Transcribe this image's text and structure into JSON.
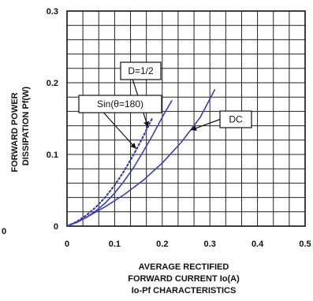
{
  "chart_data": {
    "type": "line",
    "xlabel_lines": [
      "AVERAGE RECTIFIED",
      "FORWARD CURRENT Io(A)"
    ],
    "subtitle": "Io-Pf CHARACTERISTICS",
    "ylabel_lines": [
      "FORWARD POWER",
      "DISSIPATION Pf(W)"
    ],
    "xlim": [
      0,
      0.5
    ],
    "ylim": [
      0,
      0.3
    ],
    "x_ticks": [
      "0",
      "0.1",
      "0.2",
      "0.3",
      "0.4",
      "0.5"
    ],
    "y_ticks": [
      "0",
      "0.1",
      "0.2",
      "0.3"
    ],
    "grid": true,
    "series": [
      {
        "name": "Sin(θ=180)",
        "style": "solid",
        "color": "#3a3fb0",
        "x": [
          0,
          0.02,
          0.04,
          0.06,
          0.08,
          0.1,
          0.12,
          0.14,
          0.16,
          0.18,
          0.2,
          0.22
        ],
        "y": [
          0,
          0.005,
          0.012,
          0.021,
          0.032,
          0.046,
          0.063,
          0.082,
          0.104,
          0.127,
          0.152,
          0.175
        ]
      },
      {
        "name": "D=1/2",
        "style": "dotted",
        "color": "#3a3fb0",
        "x": [
          0,
          0.02,
          0.04,
          0.06,
          0.08,
          0.1,
          0.12,
          0.14,
          0.16,
          0.18
        ],
        "y": [
          0,
          0.006,
          0.015,
          0.026,
          0.04,
          0.057,
          0.077,
          0.1,
          0.125,
          0.152
        ]
      },
      {
        "name": "DC",
        "style": "solid",
        "color": "#3a3fb0",
        "x": [
          0,
          0.04,
          0.08,
          0.12,
          0.16,
          0.2,
          0.24,
          0.28,
          0.31
        ],
        "y": [
          0,
          0.012,
          0.027,
          0.044,
          0.064,
          0.088,
          0.117,
          0.152,
          0.19
        ]
      }
    ],
    "callouts": [
      {
        "label": "D=1/2",
        "target_x": 0.17,
        "target_y": 0.138
      },
      {
        "label": "Sin(θ=180)",
        "target_x": 0.145,
        "target_y": 0.108
      },
      {
        "label": "DC",
        "target_x": 0.26,
        "target_y": 0.134
      }
    ],
    "left_edge_label": "0"
  }
}
